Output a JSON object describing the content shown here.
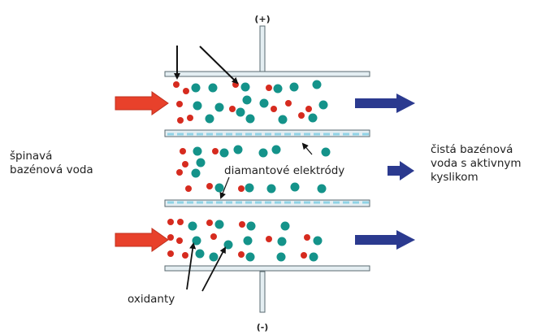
{
  "labels": {
    "positive": "(+)",
    "negative": "(-)",
    "dirty_water": "špinavá\nbazénová voda",
    "clean_water": "čistá bazénová\nvoda s aktivnym\nkyslikom",
    "electrodes": "diamantové elektródy",
    "oxidants": "oxidanty"
  },
  "colors": {
    "electrode_fill": "#e4eef2",
    "electrode_pattern": "#8fd3e6",
    "electrode_stroke": "#5a6a70",
    "inlet_arrow": "#e8412b",
    "outlet_arrow": "#2b3a8f",
    "particle_red": "#d62b1f",
    "particle_teal": "#14938a"
  }
}
